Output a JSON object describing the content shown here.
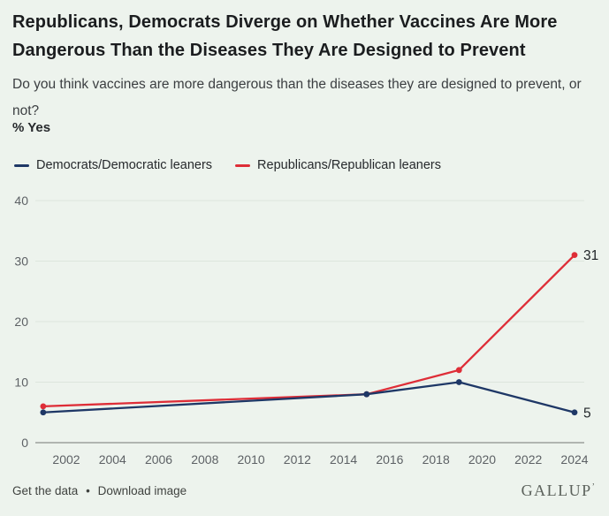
{
  "header": {
    "title": "Republicans, Democrats Diverge on Whether Vaccines Are More Dangerous Than the Diseases They Are Designed to Prevent",
    "subtitle": "Do you think vaccines are more dangerous than the diseases they are designed to prevent, or not?",
    "unit_label": "% Yes"
  },
  "chart_data": {
    "type": "line",
    "title": "Republicans, Democrats Diverge on Whether Vaccines Are More Dangerous Than the Diseases They Are Designed to Prevent",
    "subtitle": "Do you think vaccines are more dangerous than the diseases they are designed to prevent, or not?",
    "xlabel": "",
    "ylabel": "% Yes",
    "x": [
      2001,
      2015,
      2019,
      2024
    ],
    "series": [
      {
        "name": "Democrats/Democratic leaners",
        "color": "#1e3766",
        "values": [
          5,
          8,
          10,
          5
        ],
        "end_label": "5"
      },
      {
        "name": "Republicans/Republican leaners",
        "color": "#de2d37",
        "values": [
          6,
          8,
          12,
          31
        ],
        "end_label": "31"
      }
    ],
    "xticks": [
      2002,
      2004,
      2006,
      2008,
      2010,
      2012,
      2014,
      2016,
      2018,
      2020,
      2022,
      2024
    ],
    "yticks": [
      0,
      10,
      20,
      30,
      40
    ],
    "xlim": [
      2000.7,
      2024.4
    ],
    "ylim": [
      0,
      43
    ],
    "grid": true,
    "legend_position": "top"
  },
  "colors": {
    "background": "#edf3ed",
    "grid_line": "#dde5dd",
    "axis_line": "#8b908b",
    "tick_text": "#5d6165",
    "end_label_text": "#1f2327",
    "democrat_line": "#1e3766",
    "republican_line": "#de2d37"
  },
  "footer": {
    "get_data_label": "Get the data",
    "separator": "•",
    "download_label": "Download image",
    "brand": "GALLUP",
    "trademark": "’"
  }
}
